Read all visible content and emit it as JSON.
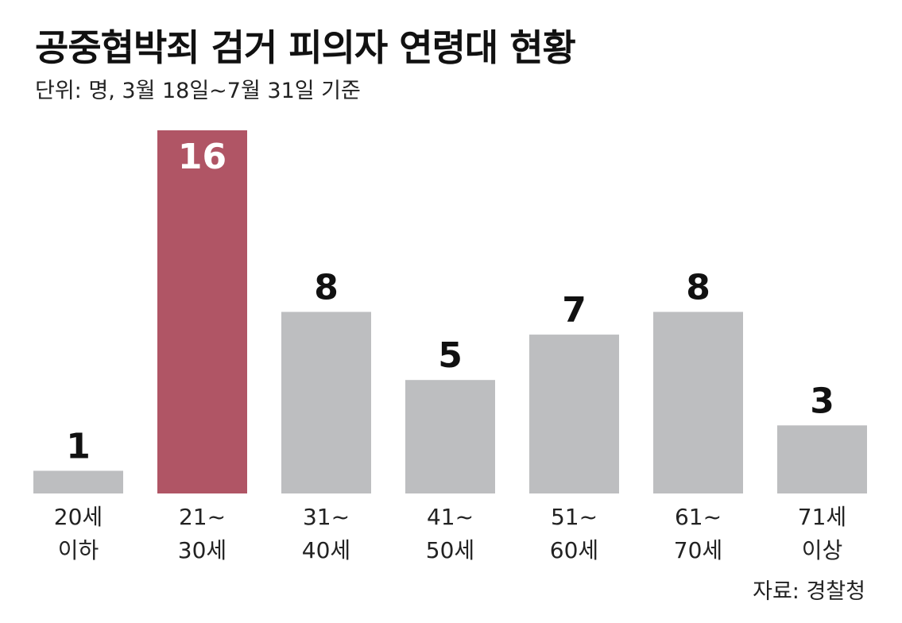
{
  "colors": {
    "bar": "#bdbec0",
    "highlight": "#b05565",
    "text": "#111111",
    "highlight_label": "#ffffff"
  },
  "chart_data": {
    "type": "bar",
    "title": "공중협박죄 검거 피의자 연령대 현황",
    "subtitle": "단위: 명, 3월 18일~7월 31일 기준",
    "source": "자료: 경찰청",
    "categories": [
      [
        "20세",
        "이하"
      ],
      [
        "21~",
        "30세"
      ],
      [
        "31~",
        "40세"
      ],
      [
        "41~",
        "50세"
      ],
      [
        "51~",
        "60세"
      ],
      [
        "61~",
        "70세"
      ],
      [
        "71세",
        "이상"
      ]
    ],
    "values": [
      1,
      16,
      8,
      5,
      7,
      8,
      3
    ],
    "highlight_index": 1,
    "ylim": [
      0,
      16
    ],
    "grid": false,
    "legend": "none"
  }
}
